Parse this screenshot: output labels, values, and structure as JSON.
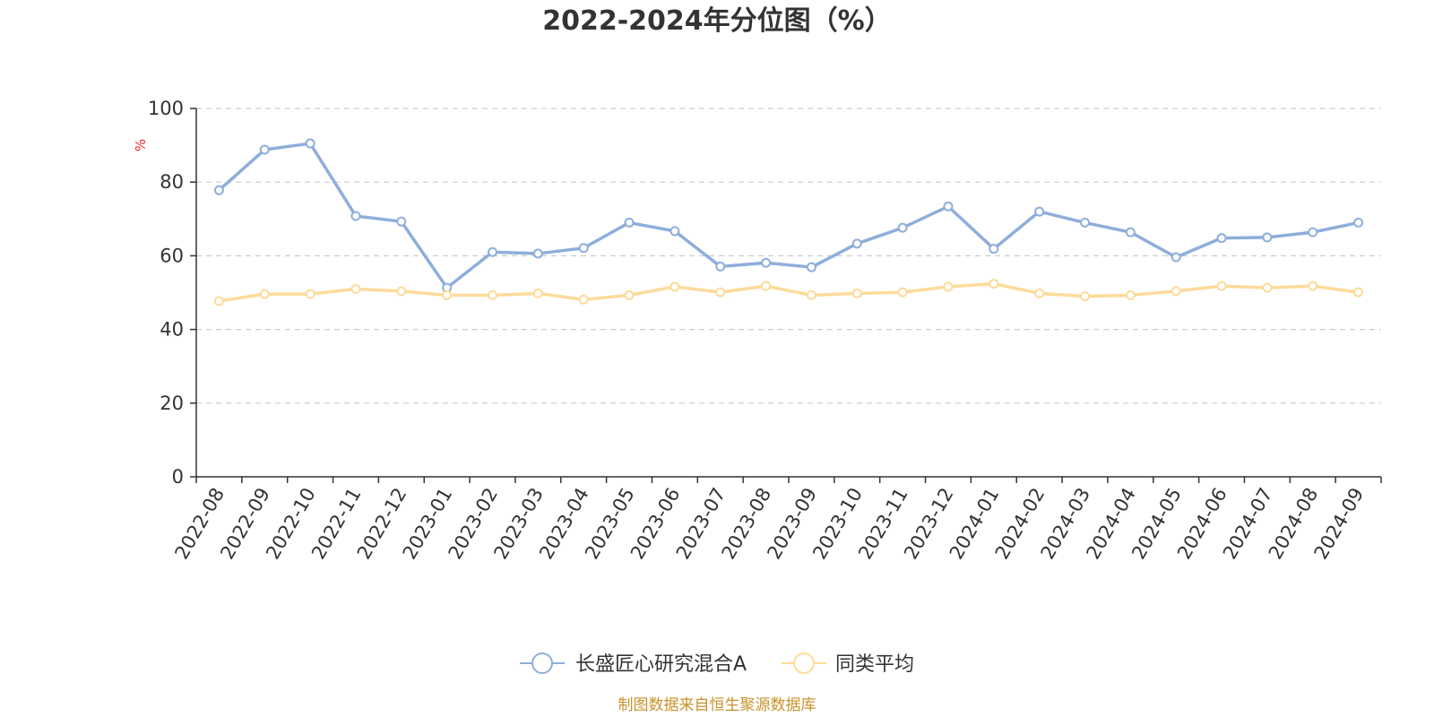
{
  "chart_data": {
    "type": "line",
    "title": "2022-2024年分位图（%）",
    "ylabel": "%",
    "xlabel": "",
    "ylim": [
      0,
      100
    ],
    "yticks": [
      0,
      20,
      40,
      60,
      80,
      100
    ],
    "grid": true,
    "legend_position": "bottom-center",
    "categories": [
      "2022-08",
      "2022-09",
      "2022-10",
      "2022-11",
      "2022-12",
      "2023-01",
      "2023-02",
      "2023-03",
      "2023-04",
      "2023-05",
      "2023-06",
      "2023-07",
      "2023-08",
      "2023-09",
      "2023-10",
      "2023-11",
      "2023-12",
      "2024-01",
      "2024-02",
      "2024-03",
      "2024-04",
      "2024-05",
      "2024-06",
      "2024-07",
      "2024-08",
      "2024-09"
    ],
    "series": [
      {
        "name": "长盛匠心研究混合A",
        "color": "#8eaedb",
        "values": [
          77.8,
          88.8,
          90.5,
          70.8,
          69.3,
          51.3,
          61.0,
          60.6,
          62.1,
          69.0,
          66.7,
          57.1,
          58.1,
          56.9,
          63.3,
          67.6,
          73.4,
          61.9,
          72.0,
          69.0,
          66.4,
          59.6,
          64.8,
          65.0,
          66.4,
          69.0
        ]
      },
      {
        "name": "同类平均",
        "color": "#fddb9a",
        "values": [
          47.7,
          49.6,
          49.6,
          51.0,
          50.4,
          49.3,
          49.3,
          49.8,
          48.1,
          49.3,
          51.6,
          50.1,
          51.8,
          49.3,
          49.8,
          50.1,
          51.6,
          52.4,
          49.8,
          49.0,
          49.3,
          50.4,
          51.8,
          51.3,
          51.8,
          50.1
        ]
      }
    ]
  },
  "source_text": "制图数据来自恒生聚源数据库",
  "colors": {
    "axis": "#333333",
    "grid": "#cccccc",
    "unit": "#ee2222",
    "source": "#c8922a"
  }
}
